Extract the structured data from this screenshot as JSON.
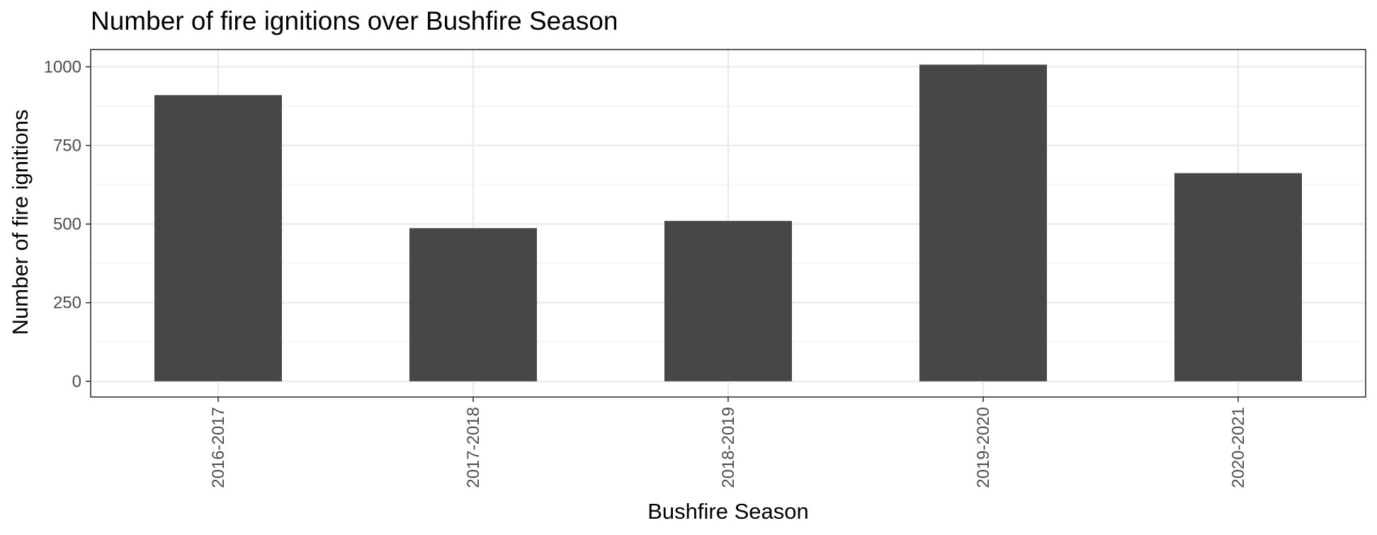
{
  "chart_data": {
    "type": "bar",
    "title": "Number of fire ignitions over Bushfire Season",
    "xlabel": "Bushfire Season",
    "ylabel": "Number of fire ignitions",
    "categories": [
      "2016-2017",
      "2017-2018",
      "2018-2019",
      "2019-2020",
      "2020-2021"
    ],
    "values": [
      910,
      487,
      510,
      1007,
      662
    ],
    "ylim": [
      -50,
      1055
    ],
    "yticks": [
      0,
      250,
      500,
      750,
      1000
    ],
    "ytick_labels": [
      "0",
      "250",
      "500",
      "750",
      "1000"
    ],
    "grid": true,
    "legend": "none",
    "x_tick_label_rotation": "vertical",
    "colors": {
      "bar": "#474747",
      "panel_border": "#333333",
      "grid_major": "#ebebeb",
      "grid_minor": "#f2f2f2",
      "tick_label": "#4d4d4d"
    }
  }
}
